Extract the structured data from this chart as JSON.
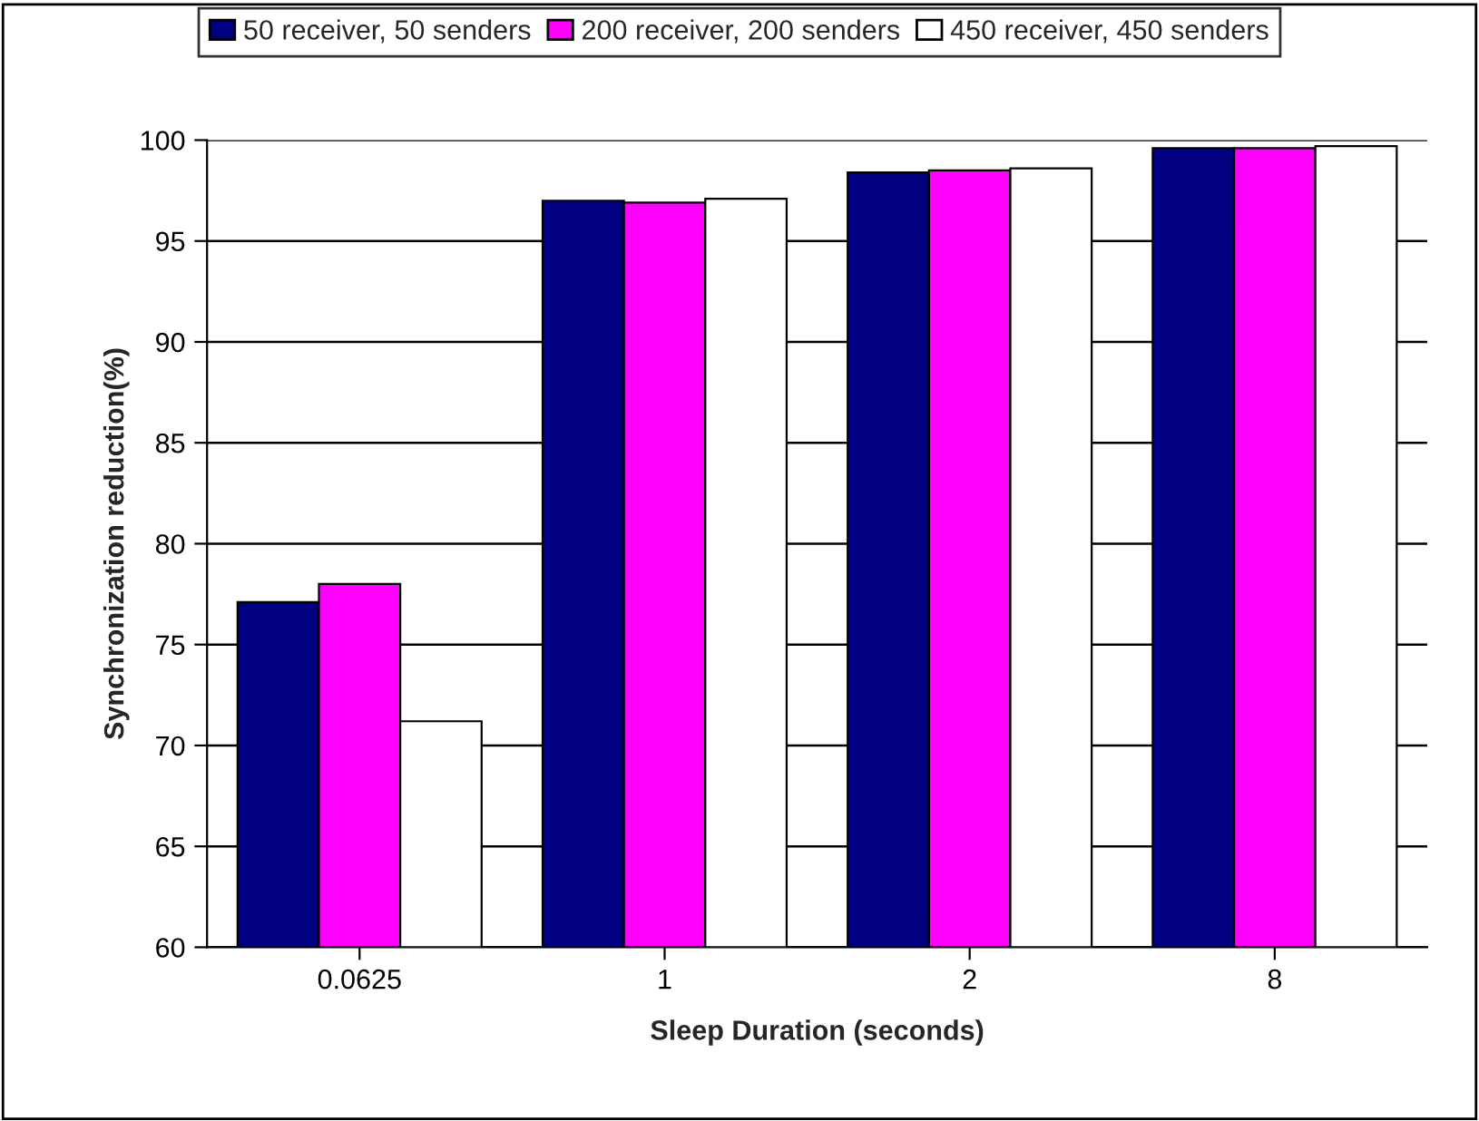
{
  "chart_data": {
    "type": "bar",
    "xlabel": "Sleep Duration (seconds)",
    "ylabel": "Synchronization reduction(%)",
    "categories": [
      "0.0625",
      "1",
      "2",
      "8"
    ],
    "series": [
      {
        "name": "50 receiver, 50 senders",
        "color": "#000080",
        "values": [
          77.1,
          97.0,
          98.4,
          99.6
        ]
      },
      {
        "name": "200 receiver, 200 senders",
        "color": "#ff00ff",
        "values": [
          78.0,
          96.9,
          98.5,
          99.6
        ]
      },
      {
        "name": "450 receiver, 450 senders",
        "color": "#ffffff",
        "values": [
          71.2,
          97.1,
          98.6,
          99.7
        ]
      }
    ],
    "ylim": [
      60,
      100
    ],
    "yticks": [
      60,
      65,
      70,
      75,
      80,
      85,
      90,
      95,
      100
    ],
    "grid": "y",
    "legend": "top"
  }
}
